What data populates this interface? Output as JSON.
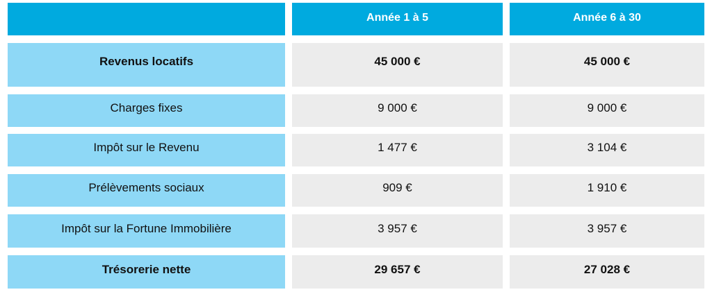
{
  "table": {
    "header": {
      "corner": "",
      "col1": "Année 1 à 5",
      "col2": "Année 6 à 30"
    },
    "rows": [
      {
        "label": "Revenus locatifs",
        "col1": "45 000 €",
        "col2": "45 000 €",
        "bold": true
      },
      {
        "label": "Charges fixes",
        "col1": "9 000 €",
        "col2": "9 000 €",
        "bold": false
      },
      {
        "label": "Impôt sur le Revenu",
        "col1": "1 477 €",
        "col2": "3 104 €",
        "bold": false
      },
      {
        "label": "Prélèvements sociaux",
        "col1": "909 €",
        "col2": "1 910 €",
        "bold": false
      },
      {
        "label": "Impôt sur la Fortune Immobilière",
        "col1": "3 957 €",
        "col2": "3 957 €",
        "bold": false
      },
      {
        "label": "Trésorerie nette",
        "col1": "29 657 €",
        "col2": "27 028 €",
        "bold": true
      }
    ]
  },
  "colors": {
    "header_background": "#00aadf",
    "label_background": "#8ed8f6",
    "value_background": "#ececec",
    "header_text": "#ffffff"
  }
}
